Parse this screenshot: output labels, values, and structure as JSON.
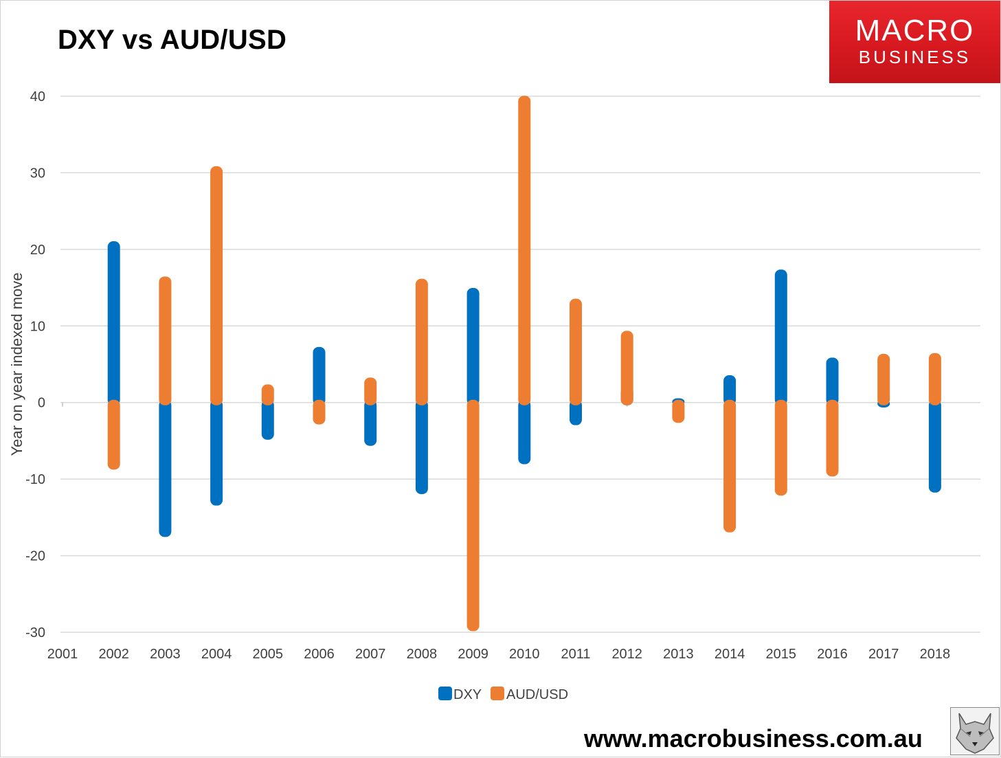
{
  "title": "DXY vs AUD/USD",
  "logo": {
    "line1": "MACRO",
    "line2": "BUSINESS"
  },
  "website": "www.macrobusiness.com.au",
  "colors": {
    "dxy": "#0070C0",
    "audusd": "#ED7D31",
    "grid": "#d9d9d9"
  },
  "chart_data": {
    "type": "bar",
    "ylabel": "Year on year indexed move",
    "xlabel": "",
    "ylim": [
      -30,
      40
    ],
    "yticks": [
      40,
      30,
      20,
      10,
      0,
      -10,
      -20,
      -30
    ],
    "categories": [
      "2001",
      "2002",
      "2003",
      "2004",
      "2005",
      "2006",
      "2007",
      "2008",
      "2009",
      "2010",
      "2011",
      "2012",
      "2013",
      "2014",
      "2015",
      "2016",
      "2017",
      "2018"
    ],
    "grid": true,
    "legend": "bottom-center",
    "series": [
      {
        "name": "DXY",
        "values": [
          null,
          20.7,
          -17.2,
          -13.1,
          -4.5,
          6.9,
          -5.3,
          -11.6,
          14.6,
          -7.7,
          -2.6,
          1.7,
          0.2,
          3.2,
          17.0,
          5.5,
          -0.3,
          -11.4
        ]
      },
      {
        "name": "AUD/USD",
        "values": [
          null,
          -8.4,
          16.1,
          30.5,
          2.0,
          -2.5,
          2.9,
          15.8,
          -29.5,
          39.7,
          13.2,
          9.0,
          -2.3,
          -16.6,
          -11.8,
          -9.3,
          6.0,
          6.1
        ]
      }
    ]
  }
}
